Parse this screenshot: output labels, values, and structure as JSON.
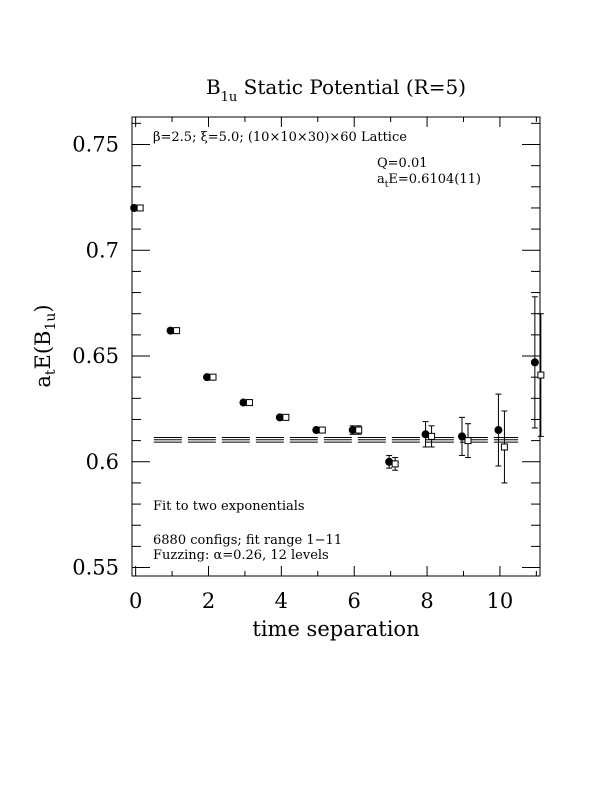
{
  "chart_data": {
    "type": "scatter",
    "title": {
      "main": "B",
      "sub": "1u",
      "rest": " Static Potential (R=5)"
    },
    "xlabel": "time separation",
    "ylabel": {
      "main": "a",
      "sub1": "t",
      "mid": "E(B",
      "sub2": "1u",
      "end": ")"
    },
    "xlim": [
      -0.1,
      11.1
    ],
    "ylim": [
      0.546,
      0.763
    ],
    "x_ticks": [
      0,
      2,
      4,
      6,
      8,
      10
    ],
    "y_ticks": [
      0.55,
      0.6,
      0.65,
      0.7,
      0.75
    ],
    "x_tick_labels": [
      "0",
      "2",
      "4",
      "6",
      "8",
      "10"
    ],
    "y_tick_labels": [
      "0.55",
      "0.6",
      "0.65",
      "0.7",
      "0.75"
    ],
    "grid": false,
    "annotations": {
      "lattice": "β=2.5; ξ=5.0; (10×10×30)×60 Lattice",
      "q": "Q=0.01",
      "energy": {
        "main": "a",
        "sub": "t",
        "rest": "E=0.6104(11)"
      },
      "fit_method": "Fit to two exponentials",
      "configs": "6880 configs; fit range 1−11",
      "fuzzing": "Fuzzing: α=0.26, 12 levels"
    },
    "fit": {
      "value": 0.6104,
      "error": 0.0011,
      "x_range": [
        0.5,
        10.5
      ]
    },
    "series": [
      {
        "marker": "filled-circle",
        "x": [
          0,
          1,
          2,
          3,
          4,
          5,
          6,
          7,
          8,
          9,
          10,
          11
        ],
        "y": [
          0.72,
          0.662,
          0.64,
          0.628,
          0.621,
          0.615,
          0.615,
          0.6,
          0.613,
          0.612,
          0.615,
          0.647
        ],
        "err": [
          0.001,
          0.001,
          0.001,
          0.001,
          0.001,
          0.001,
          0.002,
          0.003,
          0.006,
          0.009,
          0.017,
          0.031
        ]
      },
      {
        "marker": "open-square",
        "x": [
          0,
          1,
          2,
          3,
          4,
          5,
          6,
          7,
          8,
          9,
          10,
          11
        ],
        "y": [
          0.72,
          0.662,
          0.64,
          0.628,
          0.621,
          0.615,
          0.615,
          0.599,
          0.612,
          0.61,
          0.607,
          0.641
        ],
        "err": [
          0.001,
          0.001,
          0.001,
          0.001,
          0.001,
          0.001,
          0.002,
          0.003,
          0.005,
          0.008,
          0.017,
          0.029
        ]
      }
    ]
  }
}
